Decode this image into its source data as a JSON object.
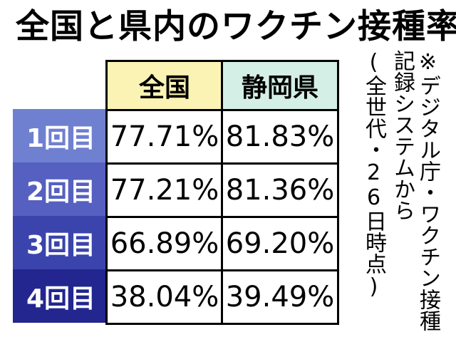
{
  "title": "全国と県内のワクチン接種率",
  "chart_data": {
    "type": "table",
    "columns": [
      "全国",
      "静岡県"
    ],
    "rows": [
      {
        "label": "1回目",
        "values": [
          "77.71%",
          "81.83%"
        ],
        "color": "#7080d0"
      },
      {
        "label": "2回目",
        "values": [
          "77.21%",
          "81.36%"
        ],
        "color": "#5560c0"
      },
      {
        "label": "3回目",
        "values": [
          "66.89%",
          "69.20%"
        ],
        "color": "#3a44ac"
      },
      {
        "label": "4回目",
        "values": [
          "38.04%",
          "39.49%"
        ],
        "color": "#22268e"
      }
    ],
    "header_colors": [
      "#fbf3b4",
      "#d4efe6"
    ]
  },
  "note": {
    "line1": "※デジタル庁・ワクチン接種",
    "line2": "記録システムから",
    "line3": "(全世代・26日時点)"
  }
}
